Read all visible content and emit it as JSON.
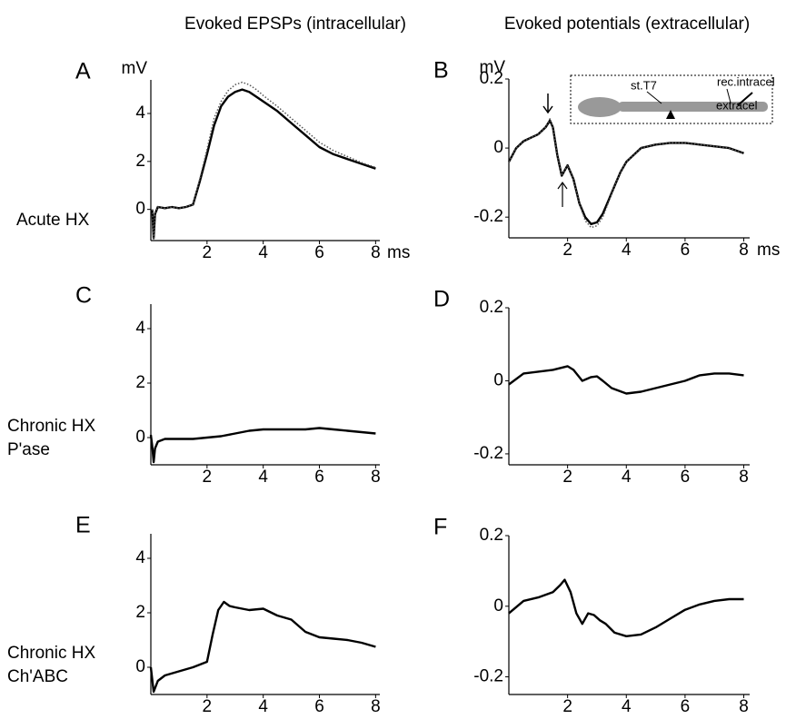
{
  "column_titles": [
    "Evoked EPSPs (intracellular)",
    "Evoked potentials (extracellular)"
  ],
  "row_labels": [
    [
      "Acute HX"
    ],
    [
      "Chronic HX",
      "P'ase"
    ],
    [
      "Chronic HX",
      "Ch'ABC"
    ]
  ],
  "chart_data": [
    {
      "type": "line",
      "panel": "A",
      "ylabel": "mV",
      "xlabel": "ms",
      "xlim": [
        0,
        8.15
      ],
      "ylim": [
        -1.3,
        5.4
      ],
      "xticks": [
        2,
        4,
        6,
        8
      ],
      "yticks": [
        0,
        2,
        4
      ],
      "x": [
        0.05,
        0.1,
        0.15,
        0.25,
        0.5,
        0.75,
        1,
        1.25,
        1.5,
        1.75,
        2,
        2.25,
        2.5,
        2.75,
        3,
        3.25,
        3.5,
        3.75,
        4,
        4.5,
        5,
        5.5,
        6,
        6.5,
        7,
        7.5,
        8
      ],
      "series": [
        {
          "color": "#000000",
          "line_style": "solid",
          "values": [
            0,
            -1.2,
            -0.2,
            0.1,
            0.05,
            0.1,
            0.05,
            0.1,
            0.2,
            1.2,
            2.3,
            3.5,
            4.3,
            4.7,
            4.9,
            5.0,
            4.9,
            4.7,
            4.5,
            4.1,
            3.6,
            3.1,
            2.6,
            2.3,
            2.1,
            1.9,
            1.7
          ]
        },
        {
          "color": "#555555",
          "line_style": "dotted",
          "values": [
            0,
            -1.2,
            -0.2,
            0.1,
            0.05,
            0.1,
            0.05,
            0.1,
            0.2,
            1.3,
            2.5,
            3.8,
            4.5,
            4.95,
            5.2,
            5.3,
            5.2,
            5.0,
            4.75,
            4.3,
            3.8,
            3.3,
            2.8,
            2.45,
            2.2,
            1.95,
            1.75
          ]
        }
      ]
    },
    {
      "type": "line",
      "panel": "B",
      "ylabel": "mV",
      "xlabel": "ms",
      "inset_labels": [
        "st.T7",
        "rec.intracel",
        "extracel"
      ],
      "xlim": [
        0,
        8.2
      ],
      "ylim": [
        -0.26,
        0.2
      ],
      "xticks": [
        2,
        4,
        6,
        8
      ],
      "yticks": [
        -0.2,
        0,
        0.2
      ],
      "x": [
        0,
        0.25,
        0.5,
        0.75,
        1,
        1.25,
        1.4,
        1.5,
        1.65,
        1.8,
        2,
        2.2,
        2.4,
        2.6,
        2.8,
        3,
        3.2,
        3.4,
        3.6,
        3.8,
        4,
        4.5,
        5,
        5.5,
        6,
        6.5,
        7,
        7.5,
        8
      ],
      "series": [
        {
          "color": "#000000",
          "line_style": "solid",
          "values": [
            -0.04,
            0.0,
            0.02,
            0.03,
            0.04,
            0.06,
            0.08,
            0.06,
            -0.02,
            -0.08,
            -0.05,
            -0.09,
            -0.16,
            -0.2,
            -0.22,
            -0.215,
            -0.19,
            -0.15,
            -0.11,
            -0.07,
            -0.04,
            0.0,
            0.01,
            0.015,
            0.015,
            0.01,
            0.005,
            0.0,
            -0.015
          ]
        },
        {
          "color": "#555555",
          "line_style": "dotted",
          "values": [
            -0.04,
            0.0,
            0.02,
            0.03,
            0.04,
            0.06,
            0.085,
            0.06,
            -0.02,
            -0.08,
            -0.05,
            -0.09,
            -0.16,
            -0.21,
            -0.23,
            -0.225,
            -0.2,
            -0.155,
            -0.11,
            -0.07,
            -0.04,
            0.0,
            0.01,
            0.015,
            0.015,
            0.01,
            0.005,
            0.0,
            -0.015
          ]
        }
      ]
    },
    {
      "type": "line",
      "panel": "C",
      "xlim": [
        0,
        8.15
      ],
      "ylim": [
        -1.0,
        4.9
      ],
      "xticks": [
        2,
        4,
        6,
        8
      ],
      "yticks": [
        0,
        2,
        4
      ],
      "x": [
        0,
        0.05,
        0.1,
        0.15,
        0.25,
        0.5,
        1,
        1.5,
        2,
        2.5,
        3,
        3.5,
        4,
        4.5,
        5,
        5.5,
        6,
        6.5,
        7,
        7.5,
        8
      ],
      "series": [
        {
          "color": "#000000",
          "line_style": "solid",
          "values": [
            0.1,
            -0.3,
            -0.9,
            -0.4,
            -0.15,
            -0.05,
            -0.05,
            -0.05,
            0.0,
            0.05,
            0.15,
            0.25,
            0.3,
            0.3,
            0.3,
            0.3,
            0.35,
            0.3,
            0.25,
            0.2,
            0.15
          ]
        }
      ]
    },
    {
      "type": "line",
      "panel": "D",
      "xlim": [
        0,
        8.2
      ],
      "ylim": [
        -0.23,
        0.2
      ],
      "xticks": [
        2,
        4,
        6,
        8
      ],
      "yticks": [
        -0.2,
        0,
        0.2
      ],
      "x": [
        0,
        0.5,
        1,
        1.5,
        2,
        2.2,
        2.5,
        2.8,
        3,
        3.2,
        3.5,
        4,
        4.5,
        5,
        5.5,
        6,
        6.5,
        7,
        7.5,
        8
      ],
      "series": [
        {
          "color": "#000000",
          "line_style": "solid",
          "values": [
            -0.01,
            0.02,
            0.025,
            0.03,
            0.04,
            0.03,
            0.0,
            0.01,
            0.012,
            0.0,
            -0.02,
            -0.035,
            -0.03,
            -0.02,
            -0.01,
            0.0,
            0.015,
            0.02,
            0.02,
            0.015
          ]
        }
      ]
    },
    {
      "type": "line",
      "panel": "E",
      "xlim": [
        0,
        8.15
      ],
      "ylim": [
        -1.0,
        4.9
      ],
      "xticks": [
        2,
        4,
        6,
        8
      ],
      "yticks": [
        0,
        2,
        4
      ],
      "x": [
        0,
        0.1,
        0.25,
        0.5,
        1,
        1.5,
        2,
        2.2,
        2.4,
        2.6,
        2.8,
        3,
        3.5,
        4,
        4.5,
        5,
        5.5,
        6,
        6.5,
        7,
        7.5,
        8
      ],
      "series": [
        {
          "color": "#000000",
          "line_style": "solid",
          "values": [
            0,
            -0.9,
            -0.5,
            -0.3,
            -0.15,
            0.0,
            0.2,
            1.2,
            2.1,
            2.4,
            2.25,
            2.2,
            2.1,
            2.15,
            1.9,
            1.75,
            1.3,
            1.1,
            1.05,
            1.0,
            0.9,
            0.75
          ]
        }
      ]
    },
    {
      "type": "line",
      "panel": "F",
      "xlim": [
        0,
        8.2
      ],
      "ylim": [
        -0.25,
        0.2
      ],
      "xticks": [
        2,
        4,
        6,
        8
      ],
      "yticks": [
        -0.2,
        0,
        0.2
      ],
      "x": [
        0,
        0.5,
        1,
        1.5,
        1.75,
        1.9,
        2.1,
        2.3,
        2.5,
        2.7,
        2.9,
        3.1,
        3.3,
        3.6,
        4,
        4.5,
        5,
        5.5,
        6,
        6.5,
        7,
        7.5,
        8
      ],
      "series": [
        {
          "color": "#000000",
          "line_style": "solid",
          "values": [
            -0.02,
            0.015,
            0.025,
            0.04,
            0.06,
            0.075,
            0.04,
            -0.02,
            -0.05,
            -0.02,
            -0.025,
            -0.04,
            -0.05,
            -0.075,
            -0.085,
            -0.08,
            -0.06,
            -0.035,
            -0.01,
            0.005,
            0.015,
            0.02,
            0.02
          ]
        }
      ]
    }
  ]
}
